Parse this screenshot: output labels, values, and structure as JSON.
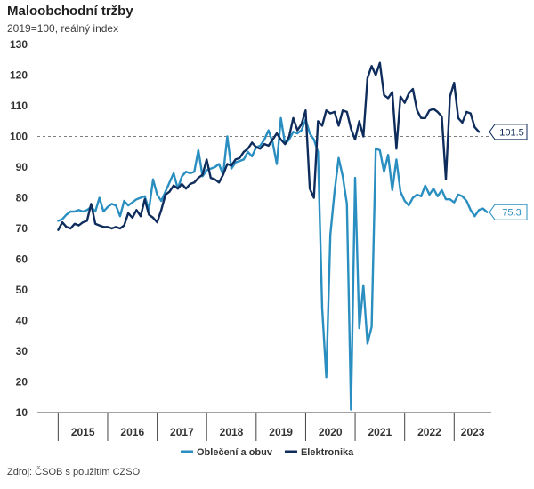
{
  "chart_data": {
    "type": "line",
    "title": "Maloobchodní tržby",
    "subtitle": "2019=100, reálný index",
    "source": "Zdroj: ČSOB s použitím CZSO",
    "ylim": [
      10,
      130
    ],
    "yticks": [
      10,
      20,
      30,
      40,
      50,
      60,
      70,
      80,
      90,
      100,
      110,
      120,
      130
    ],
    "xlim": [
      2014.58,
      2023.75
    ],
    "years": [
      "2015",
      "2016",
      "2017",
      "2018",
      "2019",
      "2020",
      "2021",
      "2022",
      "2023"
    ],
    "reference_line": 100,
    "grid": false,
    "legend_position": "bottom",
    "colors": {
      "clothing": "#2a8fc0",
      "electronics": "#0f2d5c",
      "reference": "#7f7f7f",
      "axis": "#444444"
    },
    "series": [
      {
        "name": "Oblečení a obuv",
        "key": "clothing",
        "last_label": "75.3",
        "start": 2015.0,
        "step": 0.08333,
        "values": [
          72.5,
          73.0,
          74.5,
          75.5,
          75.5,
          76.0,
          75.5,
          76.0,
          77.0,
          75.5,
          80.0,
          75.5,
          77.0,
          78.0,
          77.5,
          74.0,
          79.0,
          77.5,
          78.5,
          79.5,
          80.0,
          80.5,
          76.0,
          86.0,
          81.0,
          79.0,
          82.0,
          85.0,
          88.0,
          83.0,
          87.0,
          88.5,
          88.0,
          88.5,
          95.5,
          87.0,
          89.0,
          89.5,
          90.0,
          91.0,
          87.5,
          100.0,
          89.5,
          91.5,
          92.0,
          92.5,
          95.0,
          93.5,
          96.5,
          97.0,
          99.0,
          102.0,
          98.0,
          91.0,
          106.0,
          97.5,
          99.0,
          101.5,
          101.0,
          102.0,
          105.5,
          101.0,
          99.0,
          95.0,
          44.0,
          21.5,
          68.0,
          82.0,
          93.0,
          87.0,
          78.0,
          11.0,
          86.5,
          37.5,
          51.5,
          32.5,
          38.0,
          96.0,
          95.5,
          88.5,
          94.0,
          82.5,
          92.5,
          82.0,
          79.0,
          77.5,
          80.0,
          81.0,
          80.5,
          84.0,
          81.0,
          83.0,
          80.5,
          82.5,
          79.5,
          79.5,
          78.5,
          81.0,
          80.5,
          79.0,
          76.0,
          74.0,
          76.0,
          76.5,
          75.3
        ]
      },
      {
        "name": "Elektronika",
        "key": "electronics",
        "last_label": "101.5",
        "start": 2015.0,
        "step": 0.08333,
        "values": [
          69.5,
          72.0,
          70.5,
          70.0,
          71.5,
          71.0,
          72.0,
          72.5,
          78.0,
          71.5,
          71.0,
          70.5,
          70.5,
          70.0,
          70.5,
          70.0,
          71.0,
          75.0,
          73.5,
          76.0,
          74.0,
          79.5,
          74.5,
          73.5,
          72.0,
          76.0,
          81.0,
          82.0,
          84.0,
          83.0,
          84.5,
          83.0,
          84.5,
          85.0,
          86.5,
          87.5,
          92.5,
          86.5,
          86.0,
          85.0,
          87.5,
          91.0,
          90.5,
          92.5,
          93.0,
          95.0,
          96.0,
          98.0,
          96.5,
          96.0,
          97.5,
          97.0,
          99.0,
          101.0,
          99.0,
          97.5,
          100.0,
          106.0,
          102.0,
          104.0,
          108.5,
          83.0,
          80.0,
          105.0,
          103.5,
          108.5,
          107.5,
          108.0,
          103.5,
          108.5,
          108.0,
          102.5,
          99.0,
          105.0,
          100.0,
          119.0,
          123.0,
          120.0,
          124.0,
          113.5,
          112.5,
          114.5,
          96.0,
          113.0,
          111.0,
          114.0,
          115.5,
          108.5,
          106.0,
          106.0,
          108.5,
          109.0,
          108.0,
          106.5,
          86.0,
          113.0,
          117.5,
          106.0,
          104.5,
          108.0,
          107.5,
          103.0,
          101.5
        ]
      }
    ]
  }
}
